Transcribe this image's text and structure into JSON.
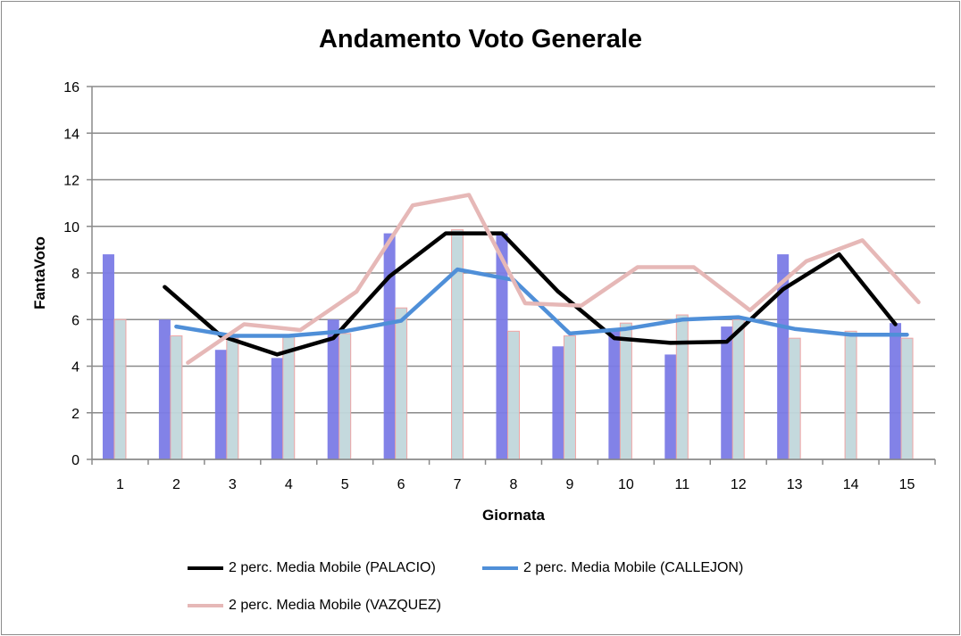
{
  "chart_data": {
    "type": "bar+line",
    "title": "Andamento Voto Generale",
    "xlabel": "Giornata",
    "ylabel": "FantaVoto",
    "ylim": [
      0,
      16
    ],
    "yticks": [
      0,
      2,
      4,
      6,
      8,
      10,
      12,
      14,
      16
    ],
    "categories": [
      "1",
      "2",
      "3",
      "4",
      "5",
      "6",
      "7",
      "8",
      "9",
      "10",
      "11",
      "12",
      "13",
      "14",
      "15"
    ],
    "grid": true,
    "legend_position": "bottom",
    "bars": [
      {
        "name": "PALACIO",
        "color": "#7b7be6",
        "values": [
          8.8,
          6.0,
          4.7,
          4.35,
          6.0,
          9.7,
          null,
          9.7,
          4.85,
          5.6,
          4.5,
          5.7,
          8.8,
          null,
          5.85
        ]
      },
      {
        "name": "CALLEJON",
        "color": "#c1d7dc",
        "border": "#f0a0a0",
        "values": [
          6.0,
          5.3,
          5.2,
          5.3,
          5.4,
          6.5,
          9.85,
          5.5,
          5.3,
          5.85,
          6.2,
          6.0,
          5.2,
          5.5,
          5.2
        ]
      }
    ],
    "series": [
      {
        "name": "2 perc. Media Mobile (PALACIO)",
        "color": "#000000",
        "offset": -1,
        "values": [
          null,
          7.4,
          5.3,
          4.5,
          5.2,
          7.85,
          9.7,
          9.7,
          7.2,
          5.2,
          5.0,
          5.05,
          7.3,
          8.8,
          5.8
        ]
      },
      {
        "name": "2 perc. Media Mobile (CALLEJON)",
        "color": "#4f8fd8",
        "offset": 0,
        "values": [
          null,
          5.7,
          5.3,
          5.3,
          5.5,
          5.95,
          8.15,
          7.7,
          5.4,
          5.6,
          6.0,
          6.1,
          5.6,
          5.35,
          5.35
        ]
      },
      {
        "name": "2 perc. Media Mobile (VAZQUEZ)",
        "color": "#e6b8b7",
        "offset": 1,
        "values": [
          null,
          4.15,
          5.8,
          5.55,
          7.2,
          10.9,
          11.35,
          6.7,
          6.6,
          8.25,
          8.25,
          6.4,
          8.5,
          9.4,
          6.75
        ]
      }
    ]
  }
}
